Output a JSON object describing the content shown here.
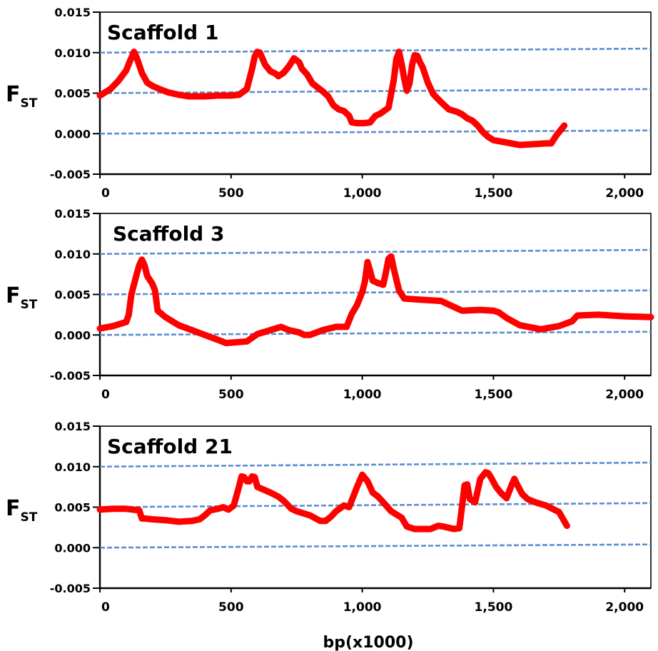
{
  "x_axis_label": "bp(x1000)",
  "y_axis_label": {
    "main": "F",
    "subscript": "ST"
  },
  "colors": {
    "series_line": "#ff0000",
    "reference_line": "#5b8fce",
    "axis": "#000000"
  },
  "chart_data": [
    {
      "type": "line",
      "title": "Scaffold 1",
      "xlim": [
        0,
        2100
      ],
      "ylim": [
        -0.005,
        0.015
      ],
      "x_ticks": [
        0,
        500,
        1000,
        1500,
        2000
      ],
      "x_tick_labels": [
        "0",
        "500",
        "1,000",
        "1,500",
        "2,000"
      ],
      "y_ticks": [
        -0.005,
        0,
        0.005,
        0.01,
        0.015
      ],
      "y_tick_labels": [
        "-0.005",
        "0.000",
        "0.005",
        "0.010",
        "0.015"
      ],
      "reference_lines": {
        "style": "dashed",
        "y_start": [
          0.0,
          0.005,
          0.01
        ],
        "y_end": [
          0.0004,
          0.0055,
          0.0105
        ]
      },
      "series": [
        {
          "x": [
            0,
            40,
            70,
            100,
            115,
            130,
            140,
            160,
            180,
            200,
            220,
            260,
            300,
            340,
            400,
            450,
            500,
            530,
            560,
            580,
            590,
            600,
            610,
            630,
            650,
            670,
            680,
            700,
            720,
            740,
            760,
            770,
            790,
            810,
            830,
            850,
            870,
            890,
            910,
            930,
            950,
            960,
            980,
            1000,
            1010,
            1030,
            1050,
            1070,
            1100,
            1120,
            1130,
            1140,
            1150,
            1160,
            1170,
            1180,
            1190,
            1200,
            1210,
            1220,
            1230,
            1250,
            1270,
            1300,
            1330,
            1360,
            1380,
            1400,
            1420,
            1440,
            1460,
            1480,
            1500,
            1550,
            1600,
            1650,
            1700,
            1720,
            1740,
            1770
          ],
          "y": [
            0.0047,
            0.0055,
            0.0065,
            0.0078,
            0.009,
            0.0101,
            0.0094,
            0.0075,
            0.0063,
            0.0059,
            0.0056,
            0.0051,
            0.0048,
            0.0046,
            0.0046,
            0.0047,
            0.0047,
            0.0048,
            0.0055,
            0.008,
            0.0095,
            0.0101,
            0.01,
            0.0085,
            0.0077,
            0.0074,
            0.0071,
            0.0075,
            0.0083,
            0.0093,
            0.0088,
            0.008,
            0.0073,
            0.0062,
            0.0057,
            0.0052,
            0.0046,
            0.0035,
            0.003,
            0.0028,
            0.0022,
            0.0014,
            0.0013,
            0.0013,
            0.0013,
            0.0014,
            0.0022,
            0.0025,
            0.0032,
            0.0066,
            0.0092,
            0.0101,
            0.0086,
            0.0068,
            0.0053,
            0.0062,
            0.0085,
            0.0097,
            0.0096,
            0.0088,
            0.0082,
            0.0063,
            0.0049,
            0.0039,
            0.003,
            0.0027,
            0.0024,
            0.0019,
            0.0016,
            0.001,
            0.0002,
            -0.0004,
            -0.0008,
            -0.0011,
            -0.0014,
            -0.0013,
            -0.0012,
            -0.0012,
            -0.0002,
            0.001
          ]
        }
      ]
    },
    {
      "type": "line",
      "title": "Scaffold 3",
      "xlim": [
        0,
        2100
      ],
      "ylim": [
        -0.005,
        0.015
      ],
      "x_ticks": [
        0,
        500,
        1000,
        1500,
        2000
      ],
      "x_tick_labels": [
        "0",
        "500",
        "1,000",
        "1,500",
        "2,000"
      ],
      "y_ticks": [
        -0.005,
        0,
        0.005,
        0.01,
        0.015
      ],
      "y_tick_labels": [
        "-0.005",
        "0.000",
        "0.005",
        "0.010",
        "0.015"
      ],
      "reference_lines": {
        "style": "dashed",
        "y_start": [
          0.0,
          0.005,
          0.01
        ],
        "y_end": [
          0.0004,
          0.0055,
          0.0105
        ]
      },
      "series": [
        {
          "x": [
            0,
            50,
            100,
            110,
            120,
            140,
            150,
            160,
            170,
            180,
            200,
            210,
            220,
            250,
            300,
            350,
            400,
            450,
            480,
            560,
            600,
            650,
            690,
            720,
            760,
            780,
            800,
            850,
            900,
            940,
            960,
            980,
            1000,
            1010,
            1020,
            1030,
            1040,
            1060,
            1080,
            1090,
            1100,
            1110,
            1120,
            1140,
            1160,
            1200,
            1300,
            1380,
            1450,
            1500,
            1520,
            1550,
            1600,
            1680,
            1750,
            1800,
            1820,
            1900,
            2000,
            2100
          ],
          "y": [
            0.0008,
            0.0011,
            0.0016,
            0.0025,
            0.005,
            0.0075,
            0.0086,
            0.0093,
            0.0086,
            0.0073,
            0.0063,
            0.0055,
            0.003,
            0.0022,
            0.0012,
            0.0006,
            0.0,
            -0.0006,
            -0.001,
            -0.0008,
            0.0001,
            0.0006,
            0.001,
            0.0006,
            0.0003,
            0.0,
            0.0,
            0.0006,
            0.001,
            0.001,
            0.0026,
            0.0037,
            0.0053,
            0.0066,
            0.009,
            0.0079,
            0.0067,
            0.0064,
            0.0062,
            0.0077,
            0.0094,
            0.0097,
            0.0082,
            0.0055,
            0.0045,
            0.0044,
            0.0042,
            0.003,
            0.0031,
            0.003,
            0.0028,
            0.0021,
            0.0012,
            0.0007,
            0.0011,
            0.0017,
            0.0024,
            0.0025,
            0.0023,
            0.0022
          ]
        }
      ]
    },
    {
      "type": "line",
      "title": "Scaffold 21",
      "xlim": [
        0,
        2100
      ],
      "ylim": [
        -0.005,
        0.015
      ],
      "x_ticks": [
        0,
        500,
        1000,
        1500,
        2000
      ],
      "x_tick_labels": [
        "0",
        "500",
        "1,000",
        "1,500",
        "2,000"
      ],
      "y_ticks": [
        -0.005,
        0,
        0.005,
        0.01,
        0.015
      ],
      "y_tick_labels": [
        "-0.005",
        "0.000",
        "0.005",
        "0.010",
        "0.015"
      ],
      "reference_lines": {
        "style": "dashed",
        "y_start": [
          0.0,
          0.005,
          0.01
        ],
        "y_end": [
          0.0004,
          0.0055,
          0.0105
        ]
      },
      "series": [
        {
          "x": [
            0,
            50,
            100,
            150,
            160,
            170,
            200,
            250,
            300,
            350,
            380,
            400,
            420,
            450,
            470,
            490,
            510,
            530,
            540,
            550,
            560,
            570,
            580,
            590,
            600,
            650,
            680,
            700,
            730,
            750,
            800,
            840,
            860,
            880,
            900,
            930,
            950,
            980,
            1000,
            1020,
            1040,
            1060,
            1080,
            1110,
            1150,
            1170,
            1200,
            1260,
            1290,
            1310,
            1350,
            1370,
            1380,
            1390,
            1400,
            1410,
            1430,
            1450,
            1470,
            1480,
            1490,
            1510,
            1530,
            1550,
            1570,
            1580,
            1590,
            1610,
            1630,
            1660,
            1700,
            1750,
            1780
          ],
          "y": [
            0.0047,
            0.0048,
            0.0048,
            0.0046,
            0.0036,
            0.0036,
            0.0035,
            0.0034,
            0.0032,
            0.0033,
            0.0035,
            0.004,
            0.0046,
            0.0048,
            0.005,
            0.0047,
            0.0052,
            0.0075,
            0.0088,
            0.0087,
            0.0082,
            0.0082,
            0.0088,
            0.0087,
            0.0075,
            0.0068,
            0.0063,
            0.0058,
            0.0048,
            0.0045,
            0.004,
            0.0033,
            0.0033,
            0.0038,
            0.0045,
            0.0052,
            0.005,
            0.0075,
            0.009,
            0.0082,
            0.0068,
            0.0063,
            0.0056,
            0.0045,
            0.0037,
            0.0026,
            0.0023,
            0.0023,
            0.0027,
            0.0026,
            0.0023,
            0.0024,
            0.005,
            0.0077,
            0.0078,
            0.006,
            0.0056,
            0.0085,
            0.0093,
            0.0092,
            0.0087,
            0.0075,
            0.0067,
            0.0061,
            0.0078,
            0.0085,
            0.0078,
            0.0066,
            0.006,
            0.0056,
            0.0052,
            0.0044,
            0.0027
          ]
        }
      ]
    }
  ]
}
